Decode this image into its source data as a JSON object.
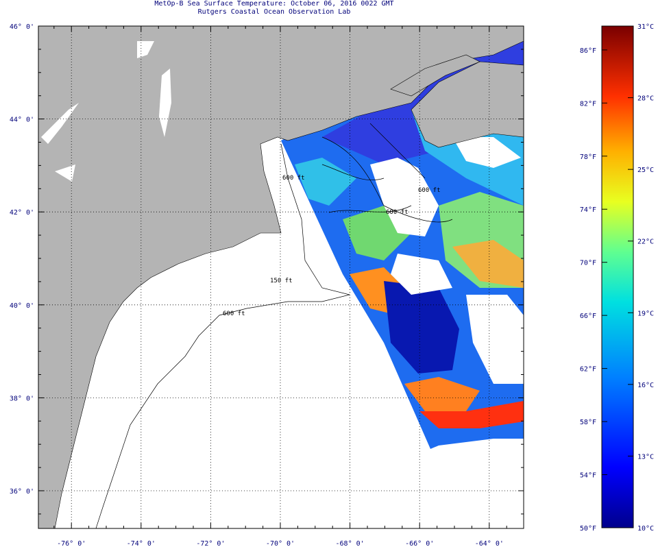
{
  "title": {
    "line1": "MetOp-B Sea Surface Temperature:  October 06, 2016 0022 GMT",
    "line2": "Rutgers Coastal Ocean Observation Lab"
  },
  "map": {
    "lat_ticks": [
      {
        "value": 46,
        "label": "46° 0'"
      },
      {
        "value": 44,
        "label": "44° 0'"
      },
      {
        "value": 42,
        "label": "42° 0'"
      },
      {
        "value": 40,
        "label": "40° 0'"
      },
      {
        "value": 38,
        "label": "38° 0'"
      },
      {
        "value": 36,
        "label": "36° 0'"
      }
    ],
    "lon_ticks": [
      {
        "value": -76,
        "label": "-76° 0'"
      },
      {
        "value": -74,
        "label": "-74° 0'"
      },
      {
        "value": -72,
        "label": "-72° 0'"
      },
      {
        "value": -70,
        "label": "-70° 0'"
      },
      {
        "value": -68,
        "label": "-68° 0'"
      },
      {
        "value": -66,
        "label": "-66° 0'"
      },
      {
        "value": -64,
        "label": "-64° 0'"
      }
    ],
    "contour_labels": [
      "150 ft",
      "600 ft",
      "600 ft",
      "600 ft",
      "600 ft"
    ],
    "land_color": "#b4b4b4",
    "ocean_color": "#ffffff",
    "grid": "dotted"
  },
  "colorbar": {
    "fahrenheit": [
      "86°F",
      "82°F",
      "78°F",
      "74°F",
      "70°F",
      "66°F",
      "62°F",
      "58°F",
      "54°F",
      "50°F"
    ],
    "celsius": [
      "31°C",
      "28°C",
      "25°C",
      "22°C",
      "19°C",
      "16°C",
      "13°C",
      "10°C"
    ],
    "colors": [
      "#000090",
      "#0000ff",
      "#0080ff",
      "#00ffff",
      "#80ff80",
      "#ffff00",
      "#ff8000",
      "#ff0000",
      "#800000"
    ]
  }
}
